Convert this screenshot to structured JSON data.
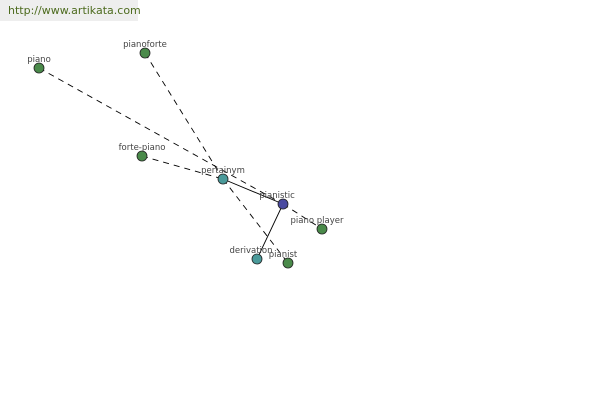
{
  "watermark": "http://www.artikata.com",
  "colors": {
    "word": "#4a8a4a",
    "relation": "#4a9a9a",
    "center": "#4a4aa0"
  },
  "nodes": [
    {
      "id": "piano",
      "label": "piano",
      "type": "word"
    },
    {
      "id": "pianoforte",
      "label": "pianoforte",
      "type": "word"
    },
    {
      "id": "forte-piano",
      "label": "forte-piano",
      "type": "word"
    },
    {
      "id": "pertainym",
      "label": "pertainym",
      "type": "relation"
    },
    {
      "id": "pianistic",
      "label": "pianistic",
      "type": "center"
    },
    {
      "id": "piano-player",
      "label": "piano player",
      "type": "word"
    },
    {
      "id": "derivation",
      "label": "derivation",
      "type": "relation"
    },
    {
      "id": "pianist",
      "label": "pianist",
      "type": "word"
    }
  ],
  "edges": [
    {
      "from": "piano",
      "to": "pianistic",
      "style": "dashed"
    },
    {
      "from": "pianoforte",
      "to": "pertainym",
      "style": "dashed"
    },
    {
      "from": "forte-piano",
      "to": "pertainym",
      "style": "dashed"
    },
    {
      "from": "pertainym",
      "to": "pianistic",
      "style": "solid"
    },
    {
      "from": "pertainym",
      "to": "pianist",
      "style": "dashed"
    },
    {
      "from": "pianistic",
      "to": "piano-player",
      "style": "dashed"
    },
    {
      "from": "pianistic",
      "to": "derivation",
      "style": "solid"
    }
  ]
}
